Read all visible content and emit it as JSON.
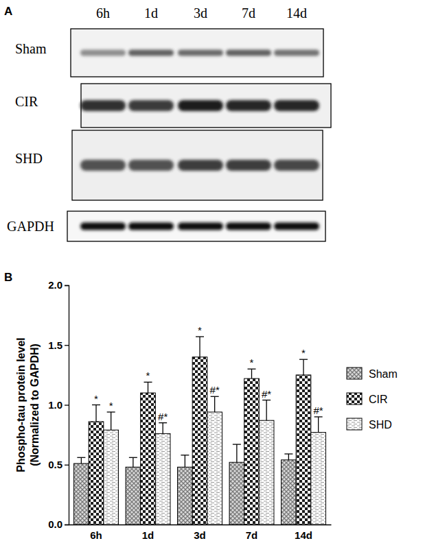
{
  "blot": {
    "panel_label": "A",
    "lanes": [
      "6h",
      "1d",
      "3d",
      "7d",
      "14d"
    ],
    "rows": [
      "Sham",
      "CIR",
      "SHD",
      "GAPDH"
    ]
  },
  "chart_data": {
    "type": "bar",
    "panel_label": "B",
    "y_label": [
      "Phospho-tau protein level",
      "(Normalized to GAPDH)"
    ],
    "categories": [
      "6h",
      "1d",
      "3d",
      "7d",
      "14d"
    ],
    "ylim": [
      0,
      2
    ],
    "yticks": [
      {
        "value": 0,
        "label": "0.0"
      },
      {
        "value": 0.5,
        "label": "0.5"
      },
      {
        "value": 1,
        "label": "1.0"
      },
      {
        "value": 1.5,
        "label": "1.5"
      },
      {
        "value": 2,
        "label": "2.0"
      }
    ],
    "legend": "right",
    "series": [
      {
        "name": "Sham",
        "color": "#7a7a7a",
        "values": [
          0.51,
          0.48,
          0.48,
          0.52,
          0.54
        ],
        "errors": [
          0.05,
          0.08,
          0.1,
          0.15,
          0.05
        ]
      },
      {
        "name": "CIR",
        "color": "#1e1e1e",
        "values": [
          0.86,
          1.1,
          1.4,
          1.22,
          1.25
        ],
        "errors": [
          0.14,
          0.09,
          0.17,
          0.08,
          0.13
        ],
        "annotations": [
          "*",
          "*",
          "*",
          "*",
          "*"
        ]
      },
      {
        "name": "SHD",
        "color": "#9a9a9a",
        "values": [
          0.79,
          0.76,
          0.94,
          0.87,
          0.77
        ],
        "errors": [
          0.15,
          0.09,
          0.13,
          0.17,
          0.13
        ],
        "annotations": [
          "*",
          "#*",
          "#*",
          "#*",
          "#*"
        ]
      }
    ]
  }
}
